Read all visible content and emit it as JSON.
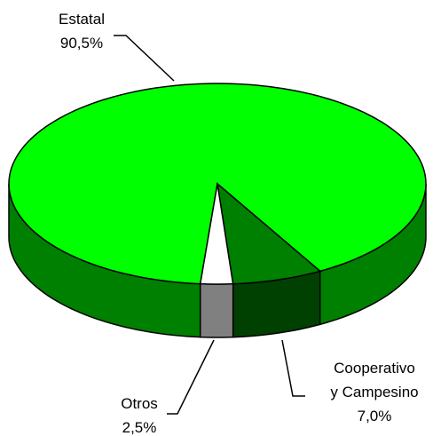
{
  "chart_data": {
    "type": "pie",
    "categories": [
      "Estatal",
      "Cooperativo y Campesino",
      "Otros"
    ],
    "values": [
      90.5,
      7.0,
      2.5
    ],
    "value_labels": [
      "90,5%",
      "7,0%",
      "2,5%"
    ],
    "colors": [
      "#00ff00",
      "#008000",
      "#ffffff"
    ]
  }
}
